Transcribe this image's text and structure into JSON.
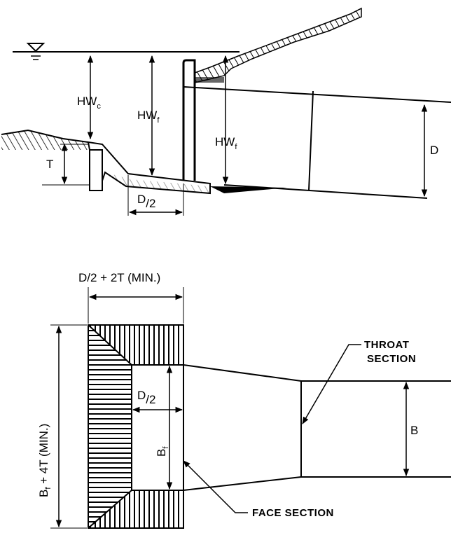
{
  "elevation": {
    "hw_c": "HW",
    "hw_c_sub": "c",
    "hw_f_left": "HW",
    "hw_f_left_sub": "f",
    "hw_f_right": "HW",
    "hw_f_right_sub": "f",
    "d_label": "D",
    "t_label": "T",
    "half_d_num": "D",
    "half_d_den": "/2"
  },
  "plan": {
    "top_dim": "D/2 + 2T (MIN.)",
    "left_dim_main": "B",
    "left_dim_sub": "f",
    "left_dim_rest": " + 4T (MIN.)",
    "half_d_num": "D",
    "half_d_den": "/2",
    "bf_main": "B",
    "bf_sub": "f",
    "b_label": "B",
    "throat_line1": "THROAT",
    "throat_line2": "SECTION",
    "face_section": "FACE SECTION"
  }
}
